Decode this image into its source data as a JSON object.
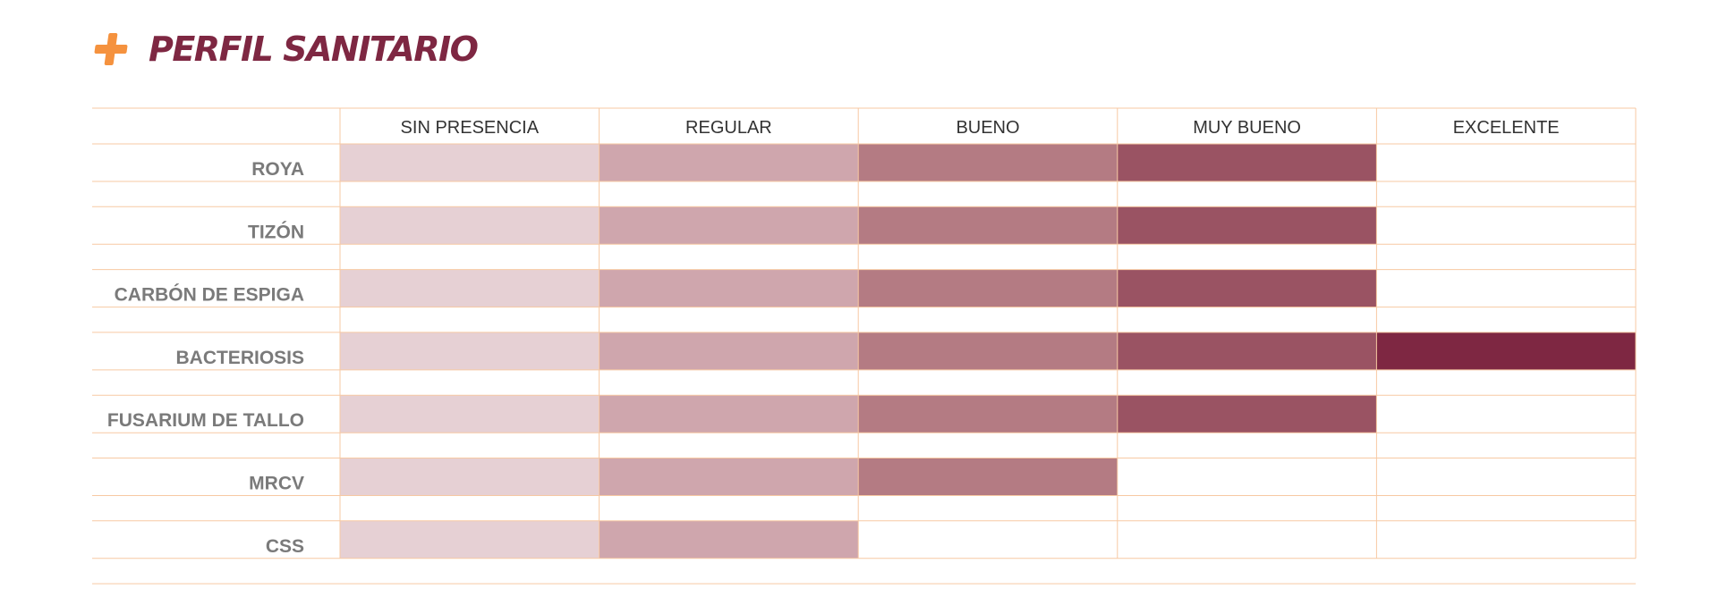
{
  "header": {
    "title": "PERFIL SANITARIO",
    "icon": "plus-icon"
  },
  "colors": {
    "title": "#7e2742",
    "icon": "#f5923e",
    "grid": "#f7c9a3",
    "levels": [
      "#e6d0d4",
      "#cfa6ad",
      "#b47b83",
      "#9a5363",
      "#7e2742"
    ]
  },
  "chart_data": {
    "type": "bar",
    "orientation": "horizontal",
    "scale_labels": [
      "SIN PRESENCIA",
      "REGULAR",
      "BUENO",
      "MUY BUENO",
      "EXCELENTE"
    ],
    "categories": [
      "ROYA",
      "TIZÓN",
      "CARBÓN DE ESPIGA",
      "BACTERIOSIS",
      "FUSARIUM DE TALLO",
      "MRCV",
      "CSS"
    ],
    "values": [
      4,
      4,
      4,
      5,
      4,
      3,
      2
    ],
    "xlim": [
      0,
      5
    ],
    "grid": true,
    "legend": "none"
  }
}
